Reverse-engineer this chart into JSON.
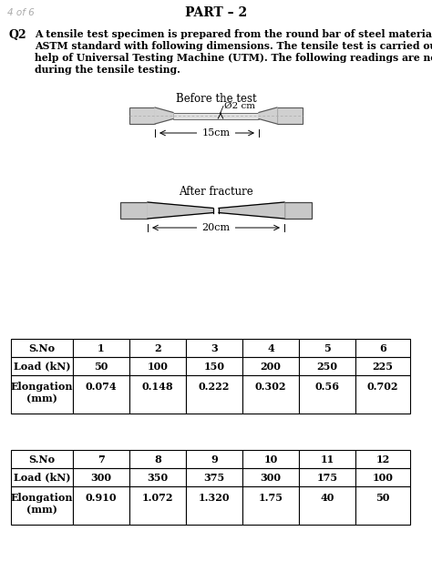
{
  "page_label": "4 of 6",
  "part_title": "PART – 2",
  "q2_label": "Q2",
  "before_label": "Before the test",
  "diameter_label": "Ø2 cm",
  "length_label": "15cm",
  "after_label": "After fracture",
  "after_length_label": "20cm",
  "table1_headers": [
    "S.No",
    "1",
    "2",
    "3",
    "4",
    "5",
    "6"
  ],
  "table1_row1": [
    "Load (kN)",
    "50",
    "100",
    "150",
    "200",
    "250",
    "225"
  ],
  "table1_row2a": "Elongation",
  "table1_row2b": "(mm)",
  "table1_row2_vals": [
    "0.074",
    "0.148",
    "0.222",
    "0.302",
    "0.56",
    "0.702"
  ],
  "table2_headers": [
    "S.No",
    "7",
    "8",
    "9",
    "10",
    "11",
    "12"
  ],
  "table2_row1": [
    "Load (kN)",
    "300",
    "350",
    "375",
    "300",
    "175",
    "100"
  ],
  "table2_row2a": "Elongation",
  "table2_row2b": "(mm)",
  "table2_row2_vals": [
    "0.910",
    "1.072",
    "1.320",
    "1.75",
    "40",
    "50"
  ],
  "bg_color": "#ffffff",
  "text_color": "#000000",
  "gray_color": "#aaaaaa",
  "fig_w": 4.74,
  "fig_h": 6.28,
  "dpi": 100
}
